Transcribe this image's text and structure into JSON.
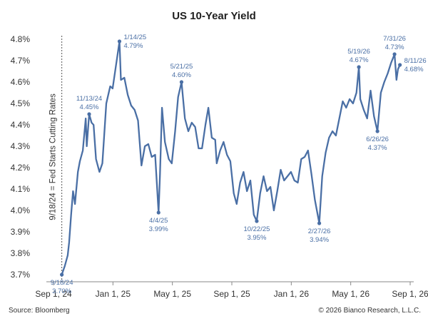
{
  "chart_data": {
    "type": "line",
    "title": "US 10-Year Yield",
    "xlabel": "",
    "ylabel": "",
    "x_ticks": [
      "Sep 1, 24",
      "Jan 1, 25",
      "May 1, 25",
      "Sep 1, 25",
      "Jan 1, 26",
      "May 1, 26",
      "Sep 1, 26"
    ],
    "y_ticks": [
      "3.7%",
      "3.8%",
      "3.9%",
      "4.0%",
      "4.1%",
      "4.2%",
      "4.3%",
      "4.4%",
      "4.5%",
      "4.6%",
      "4.7%",
      "4.8%"
    ],
    "xlim": [
      "2024-09-01",
      "2026-09-01"
    ],
    "ylim": [
      3.7,
      4.8
    ],
    "grid": false,
    "line_color": "#4a6fa5",
    "annotation_color": "#4a6fa5",
    "vertical_marker": {
      "date": "2024-09-18",
      "label": "9/18/24 = Fed Starts Cutting Rates"
    },
    "series": [
      {
        "values": [
          [
            "2024-09-18",
            3.7
          ],
          [
            "2024-09-24",
            3.74
          ],
          [
            "2024-09-30",
            3.79
          ],
          [
            "2024-10-03",
            3.85
          ],
          [
            "2024-10-07",
            3.98
          ],
          [
            "2024-10-11",
            4.09
          ],
          [
            "2024-10-15",
            4.03
          ],
          [
            "2024-10-21",
            4.18
          ],
          [
            "2024-10-25",
            4.23
          ],
          [
            "2024-10-31",
            4.28
          ],
          [
            "2024-11-06",
            4.43
          ],
          [
            "2024-11-08",
            4.3
          ],
          [
            "2024-11-13",
            4.45
          ],
          [
            "2024-11-18",
            4.41
          ],
          [
            "2024-11-22",
            4.4
          ],
          [
            "2024-11-27",
            4.24
          ],
          [
            "2024-12-04",
            4.18
          ],
          [
            "2024-12-10",
            4.22
          ],
          [
            "2024-12-18",
            4.5
          ],
          [
            "2024-12-26",
            4.58
          ],
          [
            "2024-12-31",
            4.57
          ],
          [
            "2025-01-07",
            4.68
          ],
          [
            "2025-01-14",
            4.79
          ],
          [
            "2025-01-17",
            4.61
          ],
          [
            "2025-01-24",
            4.62
          ],
          [
            "2025-01-31",
            4.54
          ],
          [
            "2025-02-07",
            4.49
          ],
          [
            "2025-02-14",
            4.47
          ],
          [
            "2025-02-21",
            4.42
          ],
          [
            "2025-02-28",
            4.21
          ],
          [
            "2025-03-07",
            4.3
          ],
          [
            "2025-03-14",
            4.31
          ],
          [
            "2025-03-21",
            4.25
          ],
          [
            "2025-03-28",
            4.26
          ],
          [
            "2025-04-04",
            3.99
          ],
          [
            "2025-04-07",
            4.17
          ],
          [
            "2025-04-11",
            4.48
          ],
          [
            "2025-04-17",
            4.32
          ],
          [
            "2025-04-25",
            4.24
          ],
          [
            "2025-05-01",
            4.22
          ],
          [
            "2025-05-08",
            4.37
          ],
          [
            "2025-05-14",
            4.53
          ],
          [
            "2025-05-21",
            4.6
          ],
          [
            "2025-05-28",
            4.43
          ],
          [
            "2025-06-04",
            4.37
          ],
          [
            "2025-06-11",
            4.41
          ],
          [
            "2025-06-18",
            4.39
          ],
          [
            "2025-06-25",
            4.29
          ],
          [
            "2025-07-02",
            4.29
          ],
          [
            "2025-07-09",
            4.4
          ],
          [
            "2025-07-15",
            4.48
          ],
          [
            "2025-07-22",
            4.34
          ],
          [
            "2025-07-29",
            4.33
          ],
          [
            "2025-08-01",
            4.22
          ],
          [
            "2025-08-08",
            4.28
          ],
          [
            "2025-08-15",
            4.32
          ],
          [
            "2025-08-22",
            4.26
          ],
          [
            "2025-08-29",
            4.23
          ],
          [
            "2025-09-05",
            4.08
          ],
          [
            "2025-09-11",
            4.03
          ],
          [
            "2025-09-18",
            4.13
          ],
          [
            "2025-09-25",
            4.18
          ],
          [
            "2025-10-02",
            4.09
          ],
          [
            "2025-10-09",
            4.14
          ],
          [
            "2025-10-16",
            3.98
          ],
          [
            "2025-10-22",
            3.95
          ],
          [
            "2025-10-29",
            4.08
          ],
          [
            "2025-11-05",
            4.16
          ],
          [
            "2025-11-12",
            4.09
          ],
          [
            "2025-11-19",
            4.11
          ],
          [
            "2025-11-26",
            4.0
          ],
          [
            "2025-12-03",
            4.09
          ],
          [
            "2025-12-10",
            4.19
          ],
          [
            "2025-12-17",
            4.14
          ],
          [
            "2025-12-24",
            4.16
          ],
          [
            "2025-12-31",
            4.18
          ],
          [
            "2026-01-07",
            4.14
          ],
          [
            "2026-01-14",
            4.13
          ],
          [
            "2026-01-21",
            4.24
          ],
          [
            "2026-01-28",
            4.25
          ],
          [
            "2026-02-04",
            4.28
          ],
          [
            "2026-02-11",
            4.17
          ],
          [
            "2026-02-18",
            4.05
          ],
          [
            "2026-02-27",
            3.94
          ],
          [
            "2026-03-05",
            4.16
          ],
          [
            "2026-03-12",
            4.27
          ],
          [
            "2026-03-19",
            4.34
          ],
          [
            "2026-03-26",
            4.37
          ],
          [
            "2026-04-02",
            4.35
          ],
          [
            "2026-04-09",
            4.43
          ],
          [
            "2026-04-16",
            4.51
          ],
          [
            "2026-04-23",
            4.48
          ],
          [
            "2026-04-30",
            4.52
          ],
          [
            "2026-05-07",
            4.5
          ],
          [
            "2026-05-14",
            4.55
          ],
          [
            "2026-05-19",
            4.67
          ],
          [
            "2026-05-22",
            4.52
          ],
          [
            "2026-05-29",
            4.47
          ],
          [
            "2026-06-05",
            4.43
          ],
          [
            "2026-06-12",
            4.56
          ],
          [
            "2026-06-19",
            4.44
          ],
          [
            "2026-06-26",
            4.37
          ],
          [
            "2026-07-03",
            4.55
          ],
          [
            "2026-07-10",
            4.6
          ],
          [
            "2026-07-17",
            4.64
          ],
          [
            "2026-07-24",
            4.69
          ],
          [
            "2026-07-31",
            4.73
          ],
          [
            "2026-08-04",
            4.61
          ],
          [
            "2026-08-07",
            4.66
          ],
          [
            "2026-08-11",
            4.68
          ]
        ]
      }
    ],
    "annotations": [
      {
        "date": "2024-09-18",
        "value": 3.7,
        "date_label": "9/18/24",
        "value_label": "3.70%",
        "position": "below"
      },
      {
        "date": "2024-11-13",
        "value": 4.45,
        "date_label": "11/13/24",
        "value_label": "4.45%",
        "position": "above"
      },
      {
        "date": "2025-01-14",
        "value": 4.79,
        "date_label": "1/14/25",
        "value_label": "4.79%",
        "position": "right"
      },
      {
        "date": "2025-04-04",
        "value": 3.99,
        "date_label": "4/4/25",
        "value_label": "3.99%",
        "position": "below"
      },
      {
        "date": "2025-05-21",
        "value": 4.6,
        "date_label": "5/21/25",
        "value_label": "4.60%",
        "position": "above"
      },
      {
        "date": "2025-10-22",
        "value": 3.95,
        "date_label": "10/22/25",
        "value_label": "3.95%",
        "position": "below"
      },
      {
        "date": "2026-02-27",
        "value": 3.94,
        "date_label": "2/27/26",
        "value_label": "3.94%",
        "position": "below"
      },
      {
        "date": "2026-05-19",
        "value": 4.67,
        "date_label": "5/19/26",
        "value_label": "4.67%",
        "position": "above"
      },
      {
        "date": "2026-06-26",
        "value": 4.37,
        "date_label": "6/26/26",
        "value_label": "4.37%",
        "position": "below"
      },
      {
        "date": "2026-07-31",
        "value": 4.73,
        "date_label": "7/31/26",
        "value_label": "4.73%",
        "position": "above"
      },
      {
        "date": "2026-08-11",
        "value": 4.68,
        "date_label": "8/11/26",
        "value_label": "4.68%",
        "position": "right"
      }
    ]
  },
  "footer": {
    "source": "Source: Bloomberg",
    "copyright": "© 2026 Bianco Research, L.L.C."
  }
}
